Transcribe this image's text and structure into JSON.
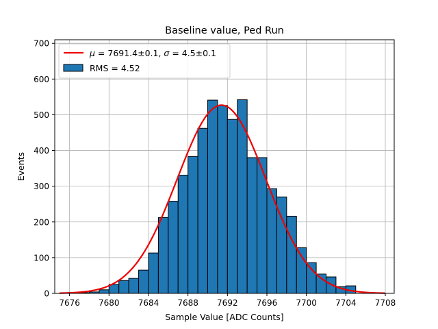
{
  "chart_data": {
    "type": "bar",
    "title": "Baseline value, Ped Run",
    "xlabel": "Sample Value [ADC Counts]",
    "ylabel": "Events",
    "xlim": [
      7674.5,
      7708.9
    ],
    "ylim": [
      0,
      710
    ],
    "grid": true,
    "legend_position": "top-left",
    "x_ticks": [
      7676,
      7680,
      7684,
      7688,
      7692,
      7696,
      7700,
      7704,
      7708
    ],
    "y_ticks": [
      0,
      100,
      200,
      300,
      400,
      500,
      600,
      700
    ],
    "histogram": {
      "label": "RMS = 4.52",
      "color": "#1f77b4",
      "edge_color": "#000000",
      "bin_width": 1,
      "bins": [
        {
          "x0": 7675,
          "count": 1
        },
        {
          "x0": 7676,
          "count": 1
        },
        {
          "x0": 7677,
          "count": 2
        },
        {
          "x0": 7678,
          "count": 4
        },
        {
          "x0": 7679,
          "count": 10
        },
        {
          "x0": 7680,
          "count": 25
        },
        {
          "x0": 7681,
          "count": 36
        },
        {
          "x0": 7682,
          "count": 42
        },
        {
          "x0": 7683,
          "count": 65
        },
        {
          "x0": 7684,
          "count": 113
        },
        {
          "x0": 7685,
          "count": 212
        },
        {
          "x0": 7686,
          "count": 258
        },
        {
          "x0": 7687,
          "count": 331
        },
        {
          "x0": 7688,
          "count": 383
        },
        {
          "x0": 7689,
          "count": 462
        },
        {
          "x0": 7690,
          "count": 541
        },
        {
          "x0": 7691,
          "count": 526
        },
        {
          "x0": 7692,
          "count": 487
        },
        {
          "x0": 7693,
          "count": 542
        },
        {
          "x0": 7694,
          "count": 380
        },
        {
          "x0": 7695,
          "count": 380
        },
        {
          "x0": 7696,
          "count": 293
        },
        {
          "x0": 7697,
          "count": 270
        },
        {
          "x0": 7698,
          "count": 216
        },
        {
          "x0": 7699,
          "count": 128
        },
        {
          "x0": 7700,
          "count": 86
        },
        {
          "x0": 7701,
          "count": 54
        },
        {
          "x0": 7702,
          "count": 46
        },
        {
          "x0": 7703,
          "count": 19
        },
        {
          "x0": 7704,
          "count": 21
        }
      ]
    },
    "fit": {
      "label_html": "<tspan font-style=\"italic\">μ</tspan> = 7691.4±0.1, <tspan font-style=\"italic\">σ</tspan> = 4.5±0.1",
      "label": "μ = 7691.4±0.1, σ = 4.5±0.1",
      "color": "#ee0000",
      "mean": 7691.4,
      "sigma": 4.5,
      "amplitude": 527,
      "x_range": [
        7675,
        7708
      ]
    }
  }
}
